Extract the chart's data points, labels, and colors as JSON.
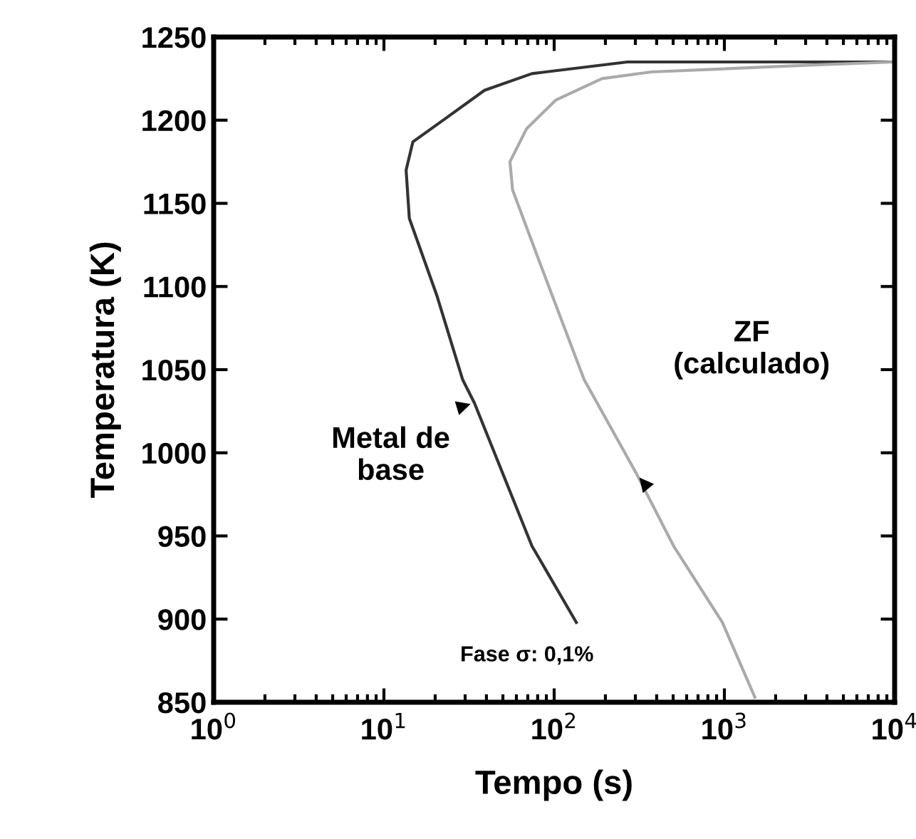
{
  "chart_data": {
    "type": "line",
    "xlabel": "Tempo (s)",
    "ylabel": "Temperatura (K)",
    "log": "x",
    "grid": false,
    "marker": "none",
    "line_style": "solid",
    "xlim": [
      1,
      10000
    ],
    "ylim": [
      850,
      1250
    ],
    "xticks": [
      {
        "value": 1,
        "label": "10$^{0}$"
      },
      {
        "value": 10,
        "label": "10$^{1}$"
      },
      {
        "value": 100,
        "label": "10$^{2}$"
      },
      {
        "value": 1000,
        "label": "10$^{3}$"
      },
      {
        "value": 10000,
        "label": "10$^{4}$"
      }
    ],
    "yticks": [
      850,
      900,
      950,
      1000,
      1050,
      1100,
      1150,
      1200,
      1250
    ],
    "series": [
      {
        "name": "Metal de\nbase",
        "color": "#333333",
        "x": [
          135,
          74,
          34,
          29,
          20.4,
          14.1,
          13.5,
          14.8,
          23,
          39,
          74,
          269,
          10000
        ],
        "values": [
          898,
          944,
          1030,
          1044,
          1095,
          1141,
          1170,
          1187,
          1201,
          1218,
          1228,
          1235,
          1235
        ]
      },
      {
        "name": "ZF\n(calculado)",
        "color": "#aaaaaa",
        "x": [
          1510,
          973,
          503,
          306,
          150,
          84,
          57,
          55,
          69,
          102,
          191,
          372,
          3000,
          10000
        ],
        "values": [
          853,
          898,
          944,
          987,
          1044,
          1112,
          1158,
          1175,
          1195,
          1212,
          1225,
          1229,
          1233,
          1235
        ]
      }
    ],
    "annotations": [
      "Fase σ: 0,1%"
    ]
  }
}
